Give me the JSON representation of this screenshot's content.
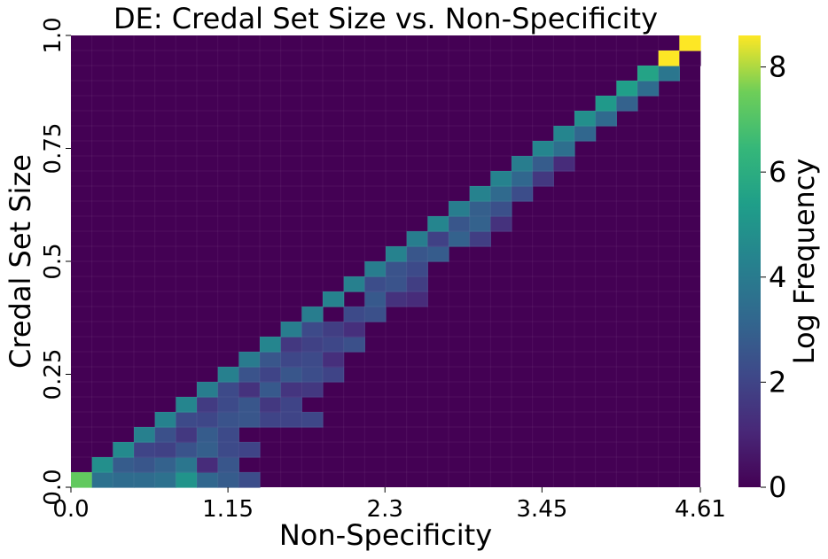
{
  "chart_data": {
    "type": "heatmap",
    "title": "DE: Credal Set Size vs. Non-Specificity",
    "xlabel": "Non-Specificity",
    "ylabel": "Credal Set Size",
    "xlim": [
      0.0,
      4.61
    ],
    "ylim": [
      0.0,
      1.0
    ],
    "x_tick_labels": [
      "0.0",
      "1.15",
      "2.3",
      "3.45",
      "4.61"
    ],
    "y_tick_labels": [
      "0.0",
      "0.25",
      "0.5",
      "0.75",
      "1.0"
    ],
    "x_ticks": [
      0.0,
      1.15,
      2.3,
      3.45,
      4.61
    ],
    "y_ticks": [
      0.0,
      0.25,
      0.5,
      0.75,
      1.0
    ],
    "bins_x": 30,
    "bins_y": 30,
    "colormap": "viridis",
    "colorbar": {
      "label": "Log Frequency",
      "range": [
        0,
        8.6
      ],
      "tick_values": [
        0,
        2,
        4,
        6,
        8
      ],
      "tick_labels": [
        "0",
        "2",
        "4",
        "6",
        "8"
      ]
    },
    "background_value": 0,
    "cells": [
      {
        "i": 0,
        "j": 0,
        "v": 7.3
      },
      {
        "i": 1,
        "j": 0,
        "v": 3.6
      },
      {
        "i": 2,
        "j": 0,
        "v": 3.4
      },
      {
        "i": 3,
        "j": 0,
        "v": 3.4
      },
      {
        "i": 4,
        "j": 0,
        "v": 3.6
      },
      {
        "i": 5,
        "j": 0,
        "v": 5.0
      },
      {
        "i": 6,
        "j": 0,
        "v": 3.2
      },
      {
        "i": 7,
        "j": 0,
        "v": 2.8
      },
      {
        "i": 8,
        "j": 0,
        "v": 2.3
      },
      {
        "i": 1,
        "j": 1,
        "v": 4.8
      },
      {
        "i": 2,
        "j": 1,
        "v": 2.8
      },
      {
        "i": 3,
        "j": 1,
        "v": 2.6
      },
      {
        "i": 4,
        "j": 1,
        "v": 3.0
      },
      {
        "i": 5,
        "j": 1,
        "v": 3.8
      },
      {
        "i": 6,
        "j": 1,
        "v": 1.2
      },
      {
        "i": 7,
        "j": 1,
        "v": 2.6
      },
      {
        "i": 2,
        "j": 2,
        "v": 4.6
      },
      {
        "i": 3,
        "j": 2,
        "v": 2.0
      },
      {
        "i": 4,
        "j": 2,
        "v": 1.9
      },
      {
        "i": 5,
        "j": 2,
        "v": 2.5
      },
      {
        "i": 6,
        "j": 2,
        "v": 2.9
      },
      {
        "i": 7,
        "j": 2,
        "v": 2.2
      },
      {
        "i": 8,
        "j": 2,
        "v": 2.0
      },
      {
        "i": 3,
        "j": 3,
        "v": 4.2
      },
      {
        "i": 4,
        "j": 3,
        "v": 2.4
      },
      {
        "i": 5,
        "j": 3,
        "v": 1.6
      },
      {
        "i": 6,
        "j": 3,
        "v": 2.8
      },
      {
        "i": 7,
        "j": 3,
        "v": 2.2
      },
      {
        "i": 4,
        "j": 4,
        "v": 4.3
      },
      {
        "i": 5,
        "j": 4,
        "v": 2.2
      },
      {
        "i": 6,
        "j": 4,
        "v": 2.1
      },
      {
        "i": 7,
        "j": 4,
        "v": 2.5
      },
      {
        "i": 8,
        "j": 4,
        "v": 2.6
      },
      {
        "i": 9,
        "j": 4,
        "v": 2.0
      },
      {
        "i": 10,
        "j": 4,
        "v": 2.0
      },
      {
        "i": 11,
        "j": 4,
        "v": 2.1
      },
      {
        "i": 5,
        "j": 5,
        "v": 4.4
      },
      {
        "i": 6,
        "j": 5,
        "v": 1.7
      },
      {
        "i": 7,
        "j": 5,
        "v": 2.2
      },
      {
        "i": 8,
        "j": 5,
        "v": 2.6
      },
      {
        "i": 9,
        "j": 5,
        "v": 1.6
      },
      {
        "i": 10,
        "j": 5,
        "v": 2.0
      },
      {
        "i": 6,
        "j": 6,
        "v": 4.1
      },
      {
        "i": 7,
        "j": 6,
        "v": 2.2
      },
      {
        "i": 8,
        "j": 6,
        "v": 1.4
      },
      {
        "i": 9,
        "j": 6,
        "v": 2.7
      },
      {
        "i": 10,
        "j": 6,
        "v": 1.5
      },
      {
        "i": 11,
        "j": 6,
        "v": 1.6
      },
      {
        "i": 7,
        "j": 7,
        "v": 4.2
      },
      {
        "i": 8,
        "j": 7,
        "v": 2.5
      },
      {
        "i": 9,
        "j": 7,
        "v": 2.0
      },
      {
        "i": 10,
        "j": 7,
        "v": 2.6
      },
      {
        "i": 11,
        "j": 7,
        "v": 2.3
      },
      {
        "i": 12,
        "j": 7,
        "v": 2.0
      },
      {
        "i": 8,
        "j": 8,
        "v": 4.0
      },
      {
        "i": 9,
        "j": 8,
        "v": 2.6
      },
      {
        "i": 10,
        "j": 8,
        "v": 2.1
      },
      {
        "i": 11,
        "j": 8,
        "v": 2.2
      },
      {
        "i": 12,
        "j": 8,
        "v": 1.3
      },
      {
        "i": 9,
        "j": 9,
        "v": 4.4
      },
      {
        "i": 10,
        "j": 9,
        "v": 1.6
      },
      {
        "i": 11,
        "j": 9,
        "v": 1.9
      },
      {
        "i": 12,
        "j": 9,
        "v": 2.1
      },
      {
        "i": 13,
        "j": 9,
        "v": 2.4
      },
      {
        "i": 10,
        "j": 10,
        "v": 4.1
      },
      {
        "i": 11,
        "j": 10,
        "v": 2.2
      },
      {
        "i": 12,
        "j": 10,
        "v": 1.8
      },
      {
        "i": 13,
        "j": 10,
        "v": 1.3
      },
      {
        "i": 11,
        "j": 11,
        "v": 4.1
      },
      {
        "i": 13,
        "j": 11,
        "v": 2.2
      },
      {
        "i": 14,
        "j": 11,
        "v": 2.4
      },
      {
        "i": 12,
        "j": 12,
        "v": 4.3
      },
      {
        "i": 14,
        "j": 12,
        "v": 2.7
      },
      {
        "i": 15,
        "j": 12,
        "v": 1.4
      },
      {
        "i": 16,
        "j": 12,
        "v": 1.2
      },
      {
        "i": 13,
        "j": 13,
        "v": 4.2
      },
      {
        "i": 14,
        "j": 13,
        "v": 2.3
      },
      {
        "i": 15,
        "j": 13,
        "v": 2.5
      },
      {
        "i": 16,
        "j": 13,
        "v": 1.8
      },
      {
        "i": 14,
        "j": 14,
        "v": 4.1
      },
      {
        "i": 15,
        "j": 14,
        "v": 2.5
      },
      {
        "i": 16,
        "j": 14,
        "v": 2.2
      },
      {
        "i": 15,
        "j": 15,
        "v": 4.3
      },
      {
        "i": 16,
        "j": 15,
        "v": 2.6
      },
      {
        "i": 17,
        "j": 15,
        "v": 2.8
      },
      {
        "i": 16,
        "j": 16,
        "v": 4.1
      },
      {
        "i": 17,
        "j": 16,
        "v": 1.9
      },
      {
        "i": 18,
        "j": 16,
        "v": 3.0
      },
      {
        "i": 19,
        "j": 16,
        "v": 1.8
      },
      {
        "i": 17,
        "j": 17,
        "v": 4.4
      },
      {
        "i": 18,
        "j": 17,
        "v": 2.6
      },
      {
        "i": 19,
        "j": 17,
        "v": 3.0
      },
      {
        "i": 20,
        "j": 17,
        "v": 1.4
      },
      {
        "i": 18,
        "j": 18,
        "v": 4.1
      },
      {
        "i": 19,
        "j": 18,
        "v": 2.9
      },
      {
        "i": 20,
        "j": 18,
        "v": 2.4
      },
      {
        "i": 19,
        "j": 19,
        "v": 4.3
      },
      {
        "i": 20,
        "j": 19,
        "v": 3.3
      },
      {
        "i": 21,
        "j": 19,
        "v": 2.3
      },
      {
        "i": 20,
        "j": 20,
        "v": 4.3
      },
      {
        "i": 21,
        "j": 20,
        "v": 3.2
      },
      {
        "i": 22,
        "j": 20,
        "v": 1.6
      },
      {
        "i": 21,
        "j": 21,
        "v": 4.1
      },
      {
        "i": 22,
        "j": 21,
        "v": 2.8
      },
      {
        "i": 23,
        "j": 21,
        "v": 1.2
      },
      {
        "i": 22,
        "j": 22,
        "v": 4.4
      },
      {
        "i": 23,
        "j": 22,
        "v": 3.5
      },
      {
        "i": 23,
        "j": 23,
        "v": 4.4
      },
      {
        "i": 24,
        "j": 23,
        "v": 3.2
      },
      {
        "i": 24,
        "j": 24,
        "v": 4.8
      },
      {
        "i": 25,
        "j": 24,
        "v": 3.3
      },
      {
        "i": 25,
        "j": 25,
        "v": 5.2
      },
      {
        "i": 26,
        "j": 25,
        "v": 3.0
      },
      {
        "i": 26,
        "j": 26,
        "v": 5.4
      },
      {
        "i": 27,
        "j": 26,
        "v": 3.4
      },
      {
        "i": 27,
        "j": 27,
        "v": 5.6
      },
      {
        "i": 28,
        "j": 27,
        "v": 3.8
      },
      {
        "i": 28,
        "j": 28,
        "v": 8.6
      },
      {
        "i": 29,
        "j": 28,
        "v": 0
      },
      {
        "i": 29,
        "j": 29,
        "v": 8.6
      }
    ]
  }
}
